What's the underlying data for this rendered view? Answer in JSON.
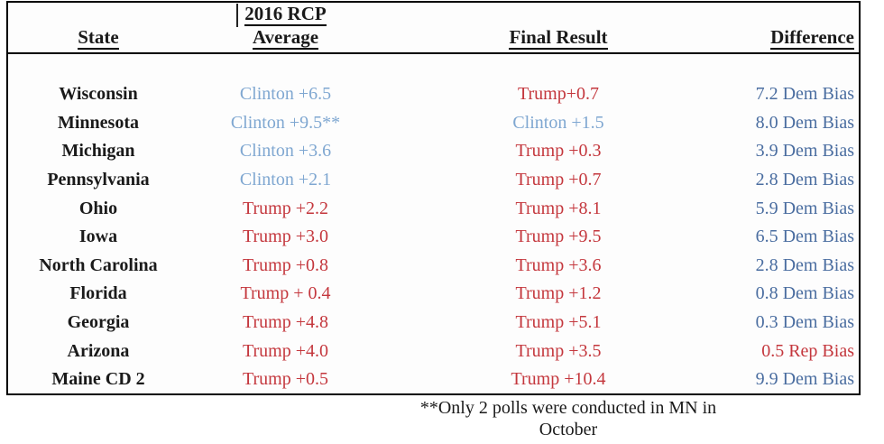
{
  "table": {
    "headers": {
      "state": "State",
      "average_line1": "2016 RCP",
      "average_line2": "Average",
      "final_result": "Final Result",
      "difference": "Difference"
    },
    "rows": [
      {
        "state": "Wisconsin",
        "rcp_average": "Clinton +6.5",
        "rcp_party": "clinton",
        "final_result": "Trump+0.7",
        "final_party": "trump",
        "difference": "7.2 Dem Bias",
        "diff_party": "dem"
      },
      {
        "state": "Minnesota",
        "rcp_average": "Clinton +9.5**",
        "rcp_party": "clinton",
        "final_result": "Clinton +1.5",
        "final_party": "clinton",
        "difference": "8.0 Dem Bias",
        "diff_party": "dem"
      },
      {
        "state": "Michigan",
        "rcp_average": "Clinton +3.6",
        "rcp_party": "clinton",
        "final_result": "Trump +0.3",
        "final_party": "trump",
        "difference": "3.9 Dem Bias",
        "diff_party": "dem"
      },
      {
        "state": "Pennsylvania",
        "rcp_average": "Clinton +2.1",
        "rcp_party": "clinton",
        "final_result": "Trump +0.7",
        "final_party": "trump",
        "difference": "2.8 Dem Bias",
        "diff_party": "dem"
      },
      {
        "state": "Ohio",
        "rcp_average": "Trump +2.2",
        "rcp_party": "trump",
        "final_result": "Trump +8.1",
        "final_party": "trump",
        "difference": "5.9 Dem Bias",
        "diff_party": "dem"
      },
      {
        "state": "Iowa",
        "rcp_average": "Trump +3.0",
        "rcp_party": "trump",
        "final_result": "Trump +9.5",
        "final_party": "trump",
        "difference": "6.5 Dem Bias",
        "diff_party": "dem"
      },
      {
        "state": "North Carolina",
        "rcp_average": "Trump +0.8",
        "rcp_party": "trump",
        "final_result": "Trump +3.6",
        "final_party": "trump",
        "difference": "2.8 Dem Bias",
        "diff_party": "dem"
      },
      {
        "state": "Florida",
        "rcp_average": "Trump + 0.4",
        "rcp_party": "trump",
        "final_result": "Trump +1.2",
        "final_party": "trump",
        "difference": "0.8 Dem Bias",
        "diff_party": "dem"
      },
      {
        "state": "Georgia",
        "rcp_average": "Trump +4.8",
        "rcp_party": "trump",
        "final_result": "Trump +5.1",
        "final_party": "trump",
        "difference": "0.3 Dem Bias",
        "diff_party": "dem"
      },
      {
        "state": "Arizona",
        "rcp_average": "Trump +4.0",
        "rcp_party": "trump",
        "final_result": "Trump +3.5",
        "final_party": "trump",
        "difference": "0.5 Rep Bias",
        "diff_party": "rep"
      },
      {
        "state": "Maine CD 2",
        "rcp_average": "Trump +0.5",
        "rcp_party": "trump",
        "final_result": "Trump +10.4",
        "final_party": "trump",
        "difference": "9.9 Dem Bias",
        "diff_party": "dem"
      }
    ]
  },
  "footnote": {
    "line1": "**Only 2 polls were conducted in MN in",
    "line2": "October"
  },
  "colors": {
    "clinton_light_blue": "#7FA7D1",
    "trump_red": "#C4373D",
    "dem_bias_blue": "#4A6DA0",
    "rep_bias_red": "#C4373D",
    "border_black": "#000000"
  }
}
